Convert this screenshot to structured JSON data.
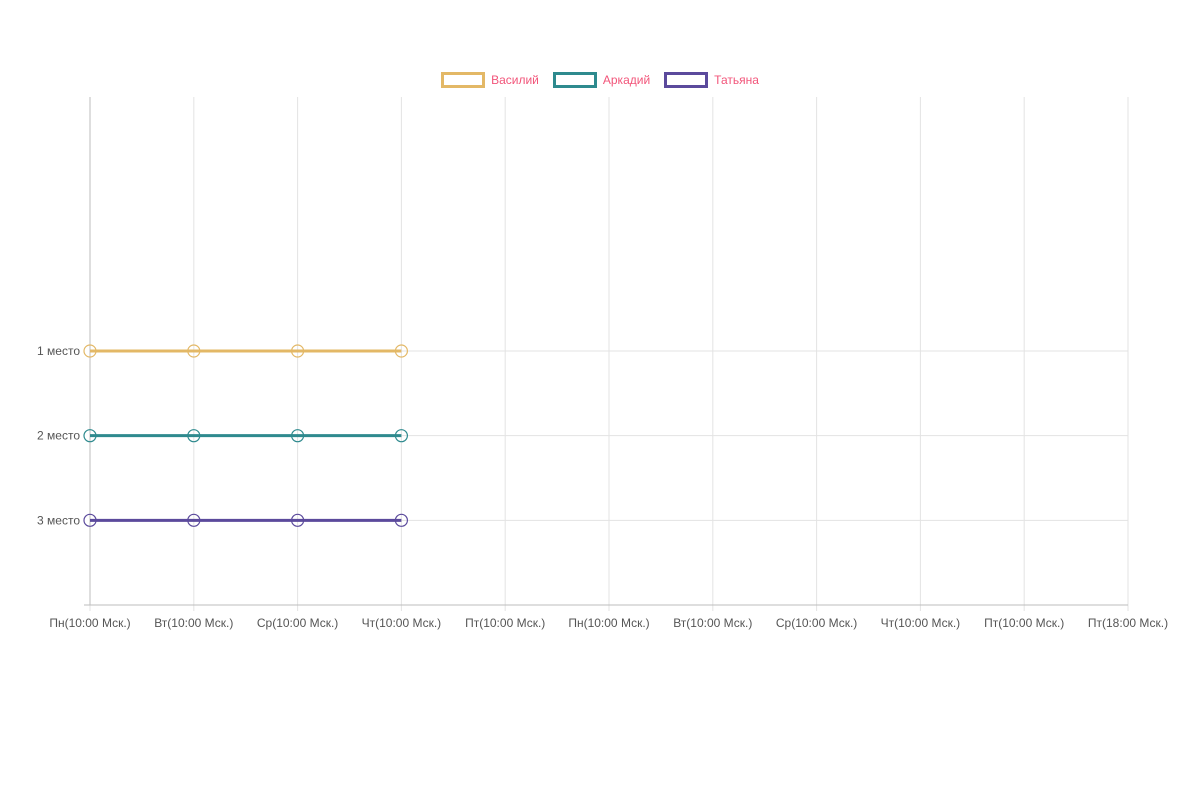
{
  "colors": {
    "grid": "#e3e3e3",
    "axis": "#bdbdbd",
    "tick_text": "#555555",
    "legend_text": "#f2557a"
  },
  "chart_data": {
    "type": "line",
    "title": "",
    "xlabel": "",
    "ylabel": "",
    "categories": [
      "Пн(10:00 Мск.)",
      "Вт(10:00 Мск.)",
      "Ср(10:00 Мск.)",
      "Чт(10:00 Мск.)",
      "Пт(10:00 Мск.)",
      "Пн(10:00 Мск.)",
      "Вт(10:00 Мск.)",
      "Ср(10:00 Мск.)",
      "Чт(10:00 Мск.)",
      "Пт(10:00 Мск.)",
      "Пт(18:00 Мск.)"
    ],
    "y_categories": [
      "1 место",
      "2 место",
      "3 место"
    ],
    "y_axis_reversed": true,
    "ylim": [
      -2,
      4
    ],
    "grid": true,
    "legend_position": "top-center",
    "series": [
      {
        "name": "Василий",
        "color": "#e3b866",
        "values": [
          1,
          1,
          1,
          1,
          null,
          null,
          null,
          null,
          null,
          null,
          null
        ]
      },
      {
        "name": "Аркадий",
        "color": "#2e8a8e",
        "values": [
          2,
          2,
          2,
          2,
          null,
          null,
          null,
          null,
          null,
          null,
          null
        ]
      },
      {
        "name": "Татьяна",
        "color": "#5b4a9c",
        "values": [
          3,
          3,
          3,
          3,
          null,
          null,
          null,
          null,
          null,
          null,
          null
        ]
      }
    ]
  }
}
